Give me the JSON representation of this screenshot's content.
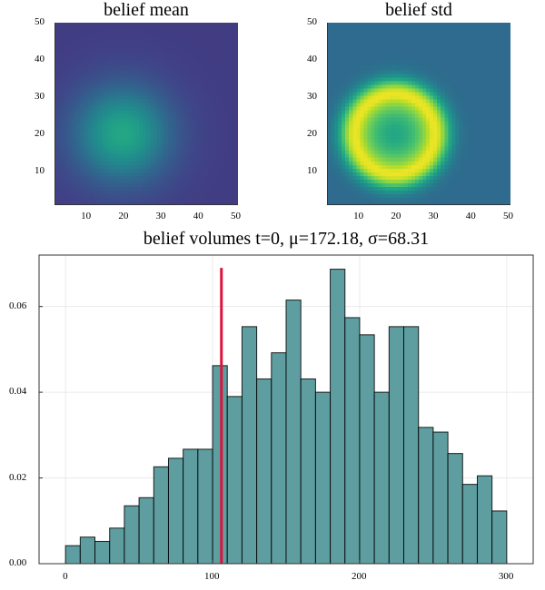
{
  "chart_data": [
    {
      "type": "heatmap",
      "title": "belief mean",
      "xlim": [
        1,
        50
      ],
      "ylim": [
        1,
        50
      ],
      "xticks": [
        "10",
        "20",
        "30",
        "40",
        "50"
      ],
      "yticks": [
        "10",
        "20",
        "30",
        "40",
        "50"
      ],
      "colormap": "viridis",
      "model": {
        "shape": "gaussian",
        "center": [
          19,
          20
        ],
        "sigma": 9,
        "min_level": 0.18,
        "peak_level": 0.6
      }
    },
    {
      "type": "heatmap",
      "title": "belief std",
      "xlim": [
        1,
        50
      ],
      "ylim": [
        1,
        50
      ],
      "xticks": [
        "10",
        "20",
        "30",
        "40",
        "50"
      ],
      "yticks": [
        "10",
        "20",
        "30",
        "40",
        "50"
      ],
      "colormap": "viridis",
      "model": {
        "shape": "ring",
        "center": [
          19,
          20
        ],
        "ring_radius": 11,
        "ring_width": 6,
        "base_level": 0.35,
        "center_level": 0.6,
        "peak_level": 0.97
      }
    },
    {
      "type": "bar",
      "title": "belief volumes t=0, μ=172.18, σ=68.31",
      "xlabel": "",
      "ylabel": "",
      "bin_width": 10,
      "bin_edges_start": 0,
      "values": [
        0.0042,
        0.0062,
        0.0052,
        0.0083,
        0.0135,
        0.0154,
        0.0226,
        0.0246,
        0.0267,
        0.0267,
        0.0462,
        0.039,
        0.0553,
        0.0431,
        0.0492,
        0.0615,
        0.0431,
        0.04,
        0.0687,
        0.0574,
        0.0534,
        0.04,
        0.0553,
        0.0553,
        0.0318,
        0.0307,
        0.0257,
        0.0185,
        0.0205,
        0.0123
      ],
      "xlim": [
        -18,
        318
      ],
      "ylim": [
        0,
        0.072
      ],
      "xticks": [
        {
          "value": 0,
          "label": "0"
        },
        {
          "value": 100,
          "label": "100"
        },
        {
          "value": 200,
          "label": "200"
        },
        {
          "value": 300,
          "label": "300"
        }
      ],
      "yticks": [
        {
          "value": 0,
          "label": "0.00"
        },
        {
          "value": 0.02,
          "label": "0.02"
        },
        {
          "value": 0.04,
          "label": "0.04"
        },
        {
          "value": 0.06,
          "label": "0.06"
        }
      ],
      "grid": true,
      "vline": {
        "x": 106,
        "ymax": 0.069,
        "color": "#dc143c"
      },
      "bar_color": "#5f9ea0",
      "edge_color": "#000000"
    }
  ]
}
